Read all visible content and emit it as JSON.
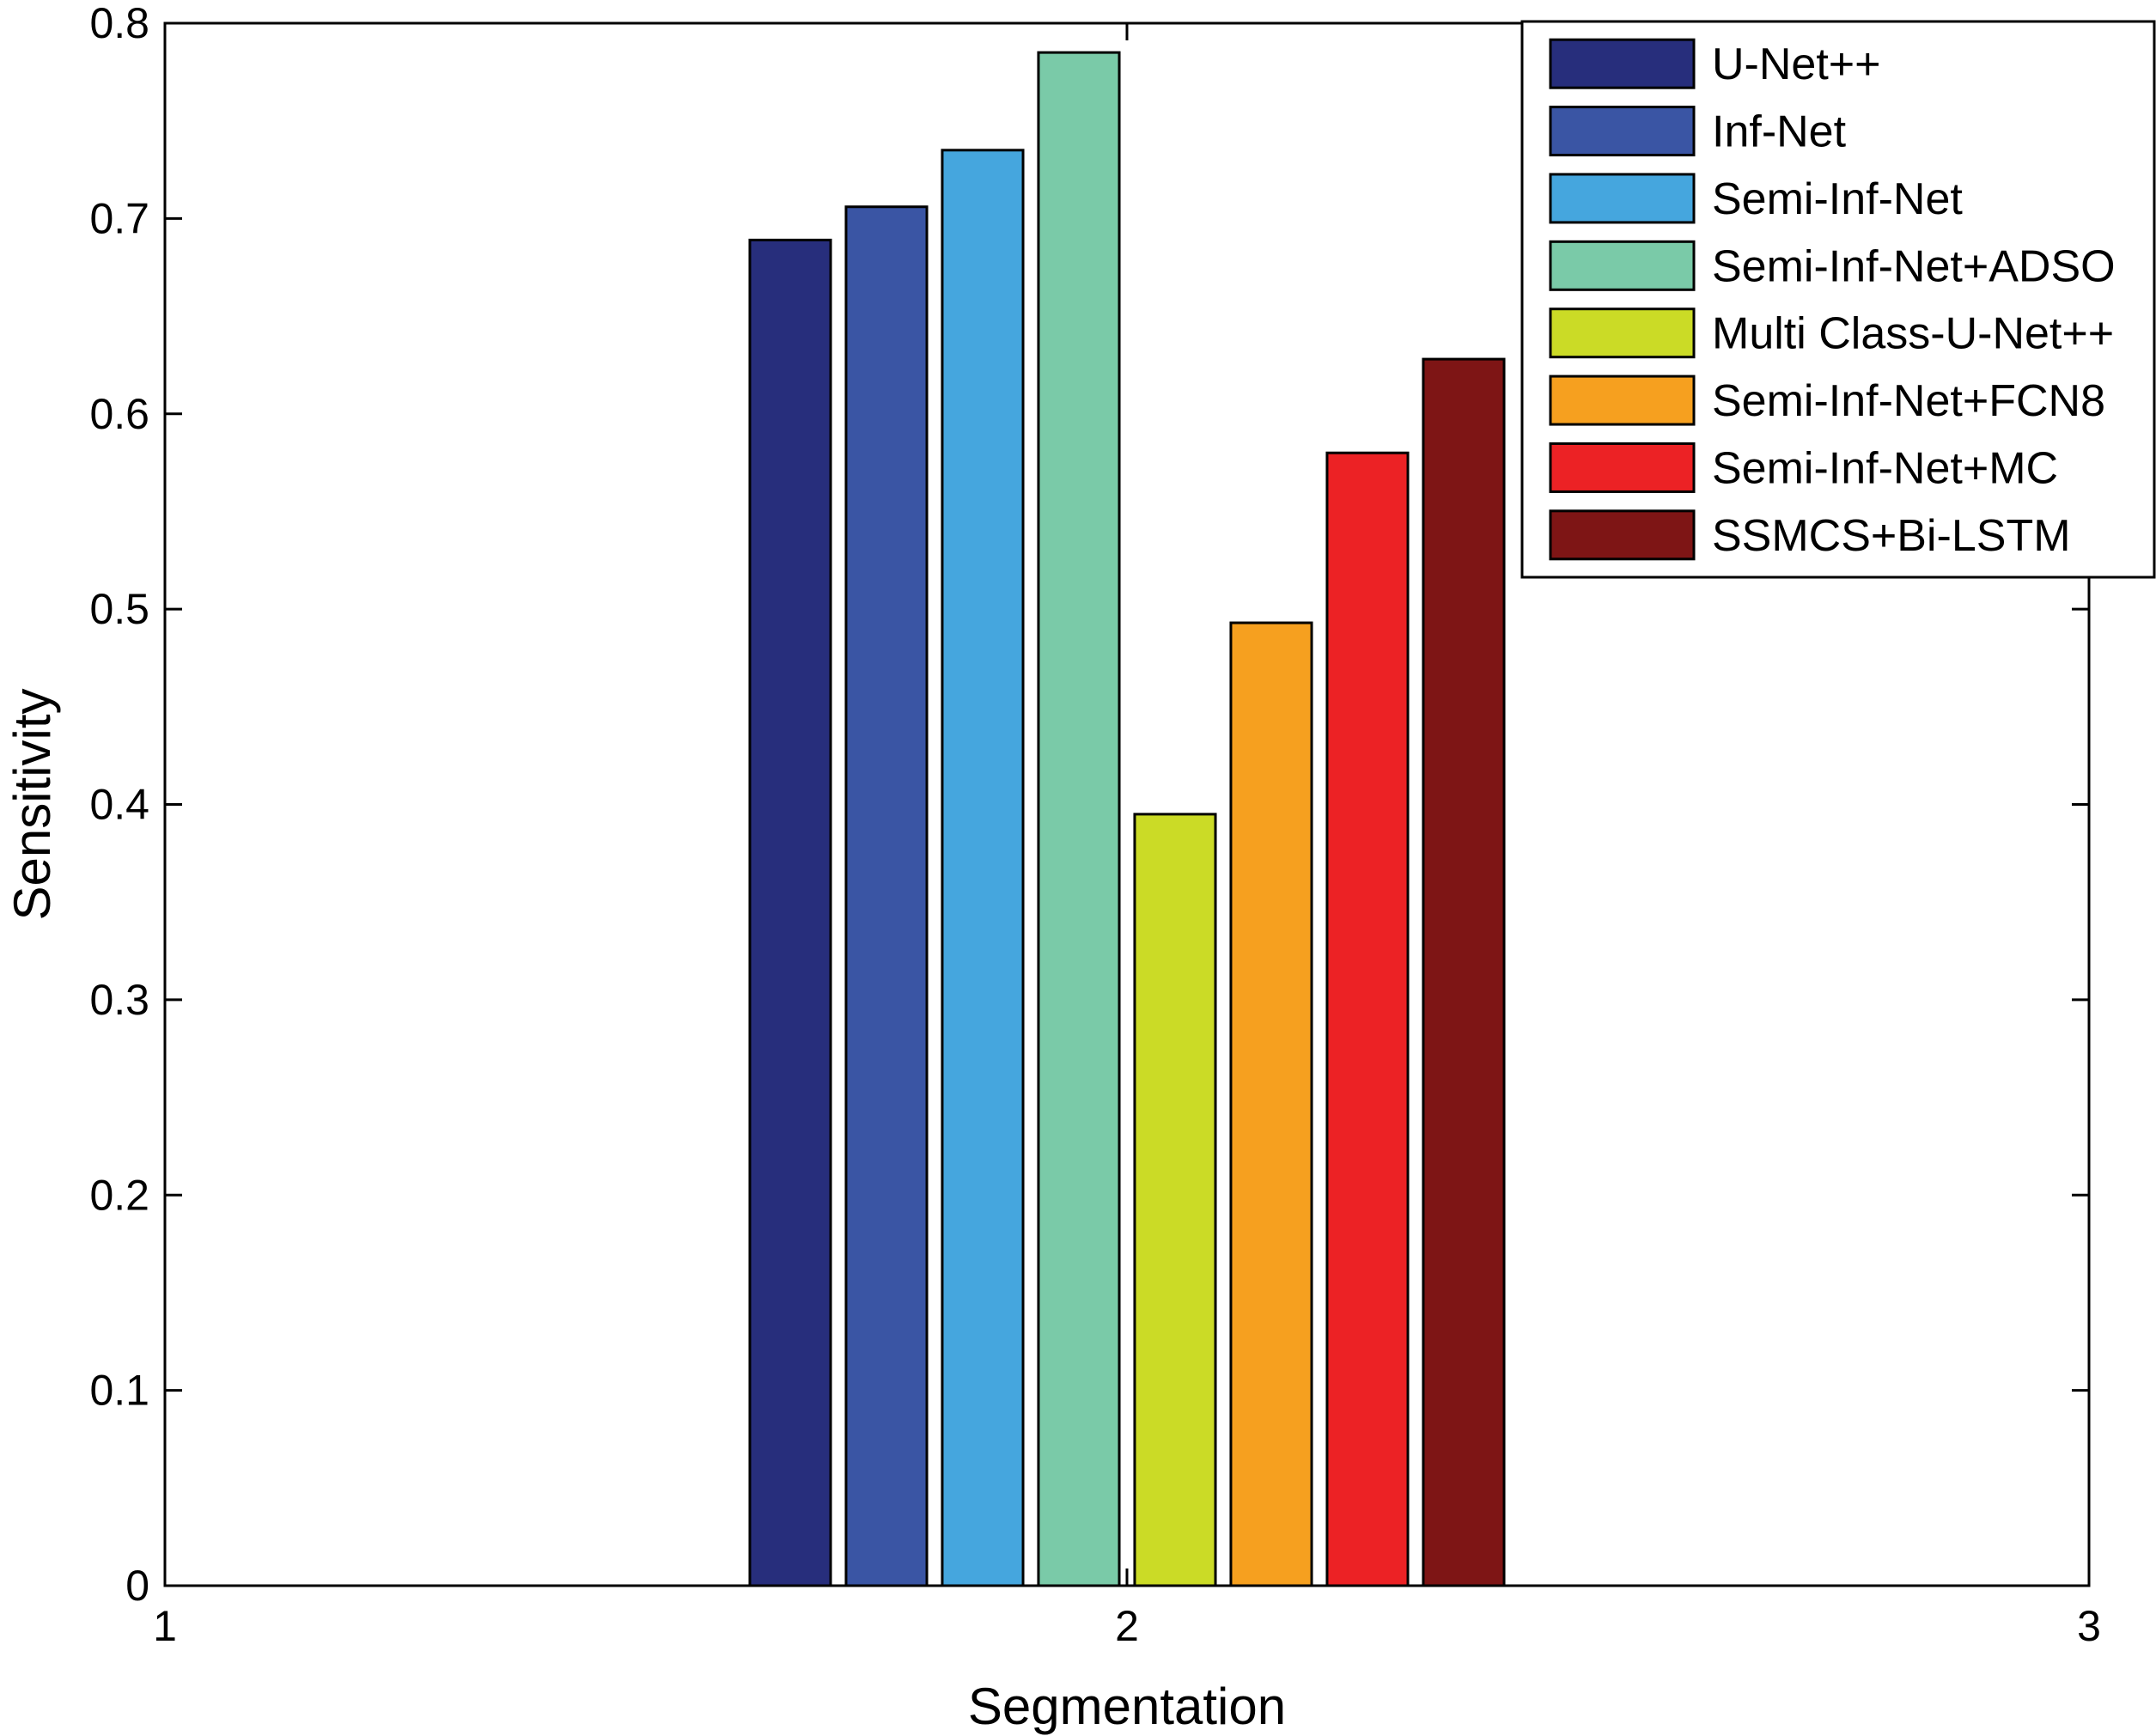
{
  "chart_data": {
    "type": "bar",
    "x_ticks": [
      "1",
      "2",
      "3"
    ],
    "xlim": [
      1,
      3
    ],
    "group_x": 2,
    "xlabel": "Segmentation",
    "ylabel": "Sensitivity",
    "ylim": [
      0,
      0.8
    ],
    "y_ticks": [
      "0",
      "0.1",
      "0.2",
      "0.3",
      "0.4",
      "0.5",
      "0.6",
      "0.7",
      "0.8"
    ],
    "grid": false,
    "legend_position": "top-right",
    "series": [
      {
        "name": "U-Net++",
        "value": 0.689,
        "color": "#272E7C"
      },
      {
        "name": "Inf-Net",
        "value": 0.706,
        "color": "#3A55A4"
      },
      {
        "name": "Semi-Inf-Net",
        "value": 0.735,
        "color": "#45A6DE"
      },
      {
        "name": "Semi-Inf-Net+ADSO",
        "value": 0.785,
        "color": "#7ACAA8"
      },
      {
        "name": "Multi Class-U-Net++",
        "value": 0.395,
        "color": "#CBDB26"
      },
      {
        "name": "Semi-Inf-Net+FCN8",
        "value": 0.493,
        "color": "#F6A01F"
      },
      {
        "name": "Semi-Inf-Net+MC",
        "value": 0.58,
        "color": "#EC2225"
      },
      {
        "name": "SSMCS+Bi-LSTM",
        "value": 0.628,
        "color": "#7E1515"
      }
    ]
  }
}
